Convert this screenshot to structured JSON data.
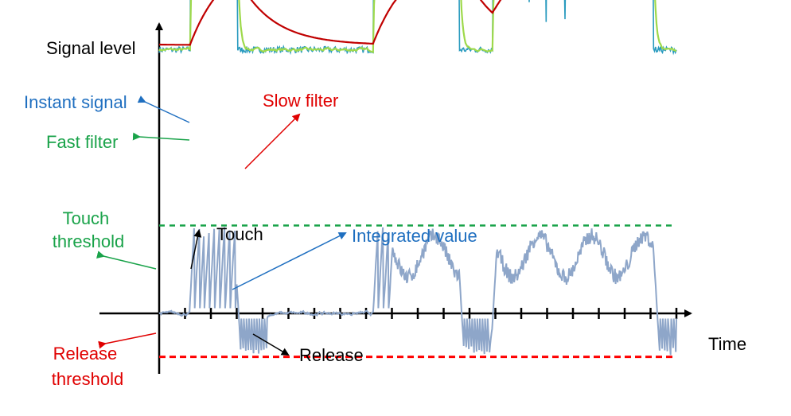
{
  "labels": {
    "ylabel": "Signal level",
    "xlabel": "Time",
    "instant_signal": "Instant signal",
    "fast_filter": "Fast filter",
    "slow_filter": "Slow filter",
    "touch_threshold_line1": "Touch",
    "touch_threshold_line2": "threshold",
    "release_threshold_line1": "Release",
    "release_threshold_line2": "threshold",
    "touch": "Touch",
    "release": "Release",
    "integrated_value": "Integrated value"
  },
  "colors": {
    "axis": "#000000",
    "instant_signal": "#2a9bbf",
    "fast_filter": "#9ed94b",
    "slow_filter": "#c00000",
    "integrated_value": "#8ea6c9",
    "touch_threshold": "#1aa34a",
    "release_threshold": "#ff0000",
    "label_instant": "#1f6fc0",
    "label_fast": "#1aa34a",
    "label_slow": "#e00000",
    "label_integrated": "#1f6fc0",
    "label_touch_threshold": "#1aa34a",
    "label_release_threshold": "#e00000"
  },
  "chart_data": {
    "type": "line",
    "title": "",
    "xlabel": "Time",
    "ylabel": "Signal level",
    "grid": false,
    "tick_count": 20,
    "thresholds": {
      "touch": 0.85,
      "release": -0.42
    },
    "touch_periods": [
      [
        1.2,
        3.0
      ],
      [
        8.3,
        11.6
      ],
      [
        12.9,
        19.1
      ]
    ],
    "series": [
      {
        "name": "Instant signal",
        "role": "instant",
        "baseline": 2.55,
        "touched": 3.85
      },
      {
        "name": "Fast filter",
        "role": "fast",
        "baseline": 2.55,
        "touched": 3.8
      },
      {
        "name": "Slow filter",
        "role": "slow",
        "baseline": 2.6,
        "touched": 3.45
      },
      {
        "name": "Integrated value",
        "role": "integrated"
      }
    ]
  }
}
